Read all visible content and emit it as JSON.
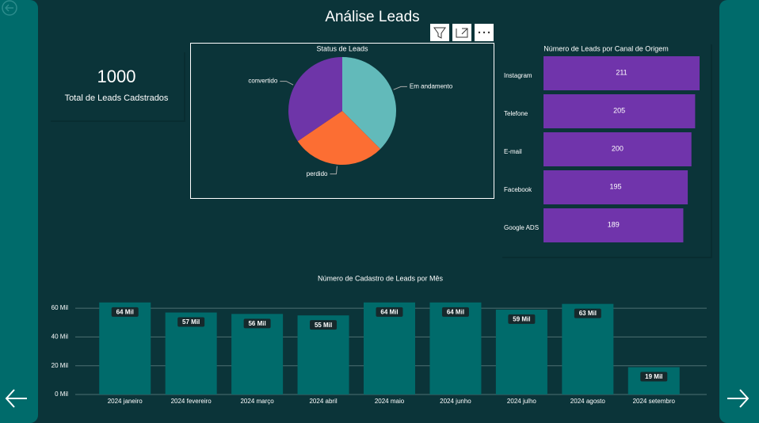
{
  "header": {
    "title": "Análise Leads"
  },
  "kpi": {
    "value": 1000,
    "label": "Total de Leads Cadstrados"
  },
  "chart_data": [
    {
      "type": "pie",
      "title": "Status de Leads",
      "categories": [
        "Em andamento",
        "perdido",
        "convertido"
      ],
      "values": [
        375,
        280,
        345
      ],
      "colors": [
        "#62baba",
        "#fc6e33",
        "#6e35a8"
      ]
    },
    {
      "type": "hbar",
      "title": "Número de Leads por Canal de Origem",
      "categories": [
        "Instagram",
        "Telefone",
        "E-mail",
        "Facebook",
        "Google ADS"
      ],
      "values": [
        211,
        205,
        200,
        195,
        189
      ],
      "color": "#7034ab",
      "xlim": [
        0,
        211
      ]
    },
    {
      "type": "bar",
      "title": "Número de Cadastro de Leads por Mês",
      "categories": [
        "2024 janeiro",
        "2024 fevereiro",
        "2024 março",
        "2024 abril",
        "2024 maio",
        "2024 junho",
        "2024 julho",
        "2024 agosto",
        "2024 setembro"
      ],
      "values": [
        64000,
        57000,
        56000,
        55000,
        64000,
        64000,
        59000,
        63000,
        19000
      ],
      "value_labels": [
        "64 Mil",
        "57 Mil",
        "56 Mil",
        "55 Mil",
        "64 Mil",
        "64 Mil",
        "59 Mil",
        "63 Mil",
        "19 Mil"
      ],
      "color": "#006b6b",
      "ylim": [
        0,
        65000
      ],
      "yticks": [
        {
          "value": 0,
          "label": "0 Mil"
        },
        {
          "value": 20000,
          "label": "20 Mil"
        },
        {
          "value": 40000,
          "label": "40 Mil"
        },
        {
          "value": 60000,
          "label": "60 Mil"
        }
      ],
      "grid": true
    }
  ]
}
